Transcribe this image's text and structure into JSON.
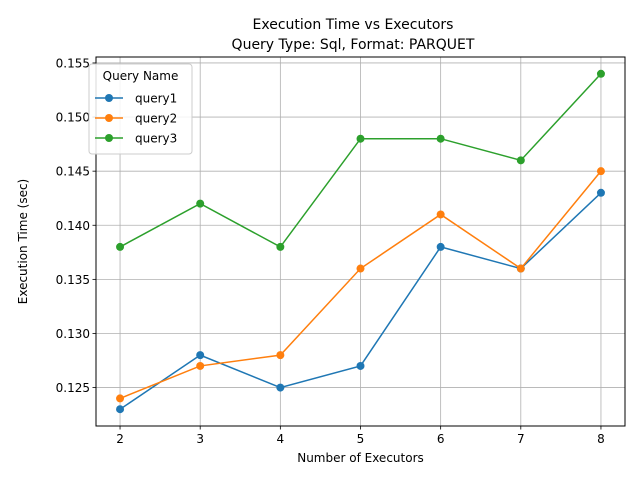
{
  "chart_data": {
    "type": "line",
    "title": "Execution Time vs Executors",
    "subtitle": "Query Type: Sql, Format: PARQUET",
    "xlabel": "Number of Executors",
    "ylabel": "Execution Time (sec)",
    "x": [
      2,
      3,
      4,
      5,
      6,
      7,
      8
    ],
    "xlim": [
      1.7,
      8.3
    ],
    "ylim": [
      0.12145,
      0.15555
    ],
    "xticks": [
      "2",
      "3",
      "4",
      "5",
      "6",
      "7",
      "8"
    ],
    "yticks": [
      "0.125",
      "0.130",
      "0.135",
      "0.140",
      "0.145",
      "0.150",
      "0.155"
    ],
    "grid": true,
    "legend": {
      "title": "Query Name",
      "placement": "top-left"
    },
    "series": [
      {
        "name": "query1",
        "color": "#1f77b4",
        "values": [
          0.123,
          0.128,
          0.125,
          0.127,
          0.138,
          0.136,
          0.143
        ]
      },
      {
        "name": "query2",
        "color": "#ff7f0e",
        "values": [
          0.124,
          0.127,
          0.128,
          0.136,
          0.141,
          0.136,
          0.145
        ]
      },
      {
        "name": "query3",
        "color": "#2ca02c",
        "values": [
          0.138,
          0.142,
          0.138,
          0.148,
          0.148,
          0.146,
          0.154
        ]
      }
    ]
  }
}
